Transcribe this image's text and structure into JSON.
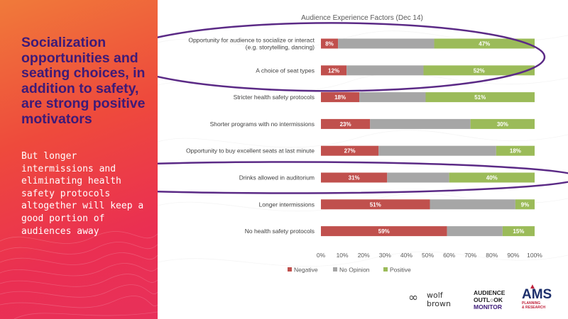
{
  "slide": {
    "headline": "Socialization opportunities and seating choices, in addition to safety, are strong positive motivators",
    "subtext": "But longer intermissions and eliminating health safety protocols altogether will keep a good portion of audiences away"
  },
  "logos": {
    "wolf_brown_line1": "wolf",
    "wolf_brown_line2": "brown",
    "audience_outlook_line1": "AUDIENCE",
    "audience_outlook_line2": "OUTL○OK",
    "audience_outlook_line3": "MONITOR",
    "ams_main": "AMS",
    "ams_sub1": "PLANNING",
    "ams_sub2": "& RESEARCH"
  },
  "colors": {
    "negative": "#c0504d",
    "no_opinion": "#a6a6a6",
    "positive": "#9bbb59",
    "highlight_ellipse": "#5b2a86"
  },
  "chart_data": {
    "type": "bar",
    "orientation": "horizontal",
    "stacked": "percent",
    "title": "Audience Experience Factors (Dec 14)",
    "categories": [
      "Opportunity for audience to socialize or interact (e.g. storytelling, dancing)",
      "A choice of seat types",
      "Stricter health safety protocols",
      "Shorter programs with no intermissions",
      "Opportunity to buy excellent seats at last minute",
      "Drinks allowed in auditorium",
      "Longer intermissions",
      "No health safety protocols"
    ],
    "series": [
      {
        "name": "Negative",
        "values": [
          8,
          12,
          18,
          23,
          27,
          31,
          51,
          59
        ]
      },
      {
        "name": "No Opinion",
        "values": [
          45,
          36,
          31,
          47,
          55,
          29,
          40,
          26
        ]
      },
      {
        "name": "Positive",
        "values": [
          47,
          52,
          51,
          30,
          18,
          40,
          9,
          15
        ]
      }
    ],
    "data_labels": {
      "Negative": [
        "8%",
        "12%",
        "18%",
        "23%",
        "27%",
        "31%",
        "51%",
        "59%"
      ],
      "Positive": [
        "47%",
        "52%",
        "51%",
        "30%",
        "18%",
        "40%",
        "9%",
        "15%"
      ]
    },
    "xlim": [
      0,
      100
    ],
    "x_ticks": [
      "0%",
      "10%",
      "20%",
      "30%",
      "40%",
      "50%",
      "60%",
      "70%",
      "80%",
      "90%",
      "100%"
    ],
    "legend_position": "bottom",
    "highlighted_categories": [
      "Opportunity for audience to socialize or interact (e.g. storytelling, dancing)",
      "A choice of seat types",
      "Drinks allowed in auditorium"
    ]
  }
}
